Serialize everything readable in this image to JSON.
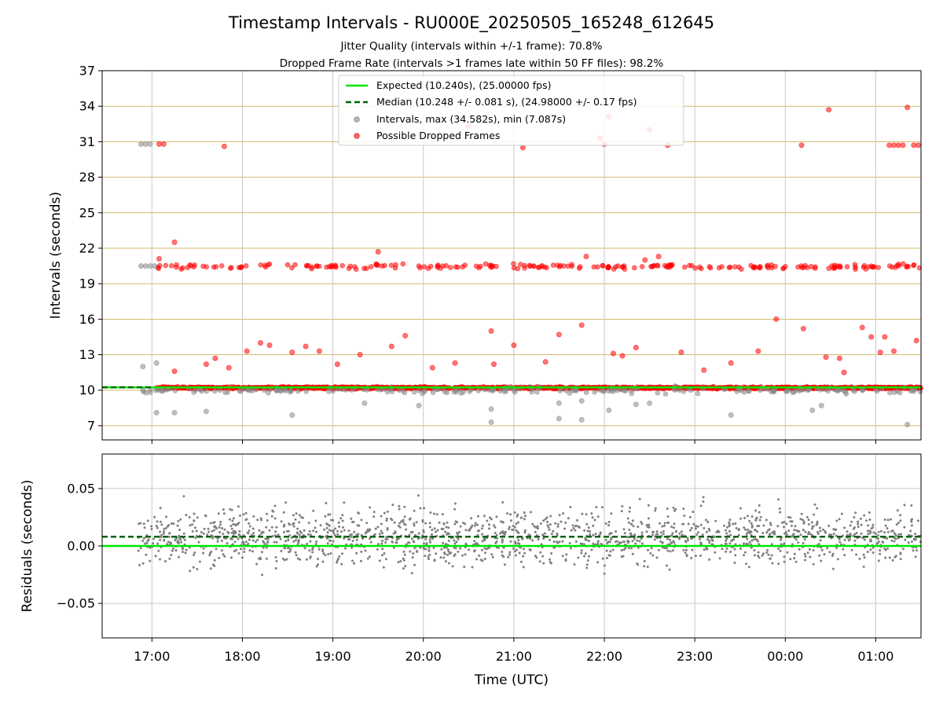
{
  "chart_data": [
    {
      "type": "scatter",
      "panel": "intervals",
      "title": "Timestamp Intervals - RU000E_20250505_165248_612645",
      "subtitle_lines": [
        "Jitter Quality (intervals within +/-1 frame): 70.8%",
        "Dropped Frame Rate (intervals >1 frames late within 50 FF files): 98.2%"
      ],
      "ylabel": "Intervals (seconds)",
      "ylim": [
        5.8,
        37
      ],
      "yticks": [
        7,
        10,
        13,
        16,
        19,
        22,
        25,
        28,
        31,
        34,
        37
      ],
      "xlim_hours": [
        16.45,
        25.5
      ],
      "grid": true,
      "legend_position": "top-center",
      "legend": [
        {
          "label": "Expected (10.240s), (25.00000 fps)",
          "style": "solid-line",
          "color": "#00e600"
        },
        {
          "label": "Median (10.248 +/- 0.081 s), (24.98000 +/- 0.17 fps)",
          "style": "dashed-line",
          "color": "#006400"
        },
        {
          "label": "Intervals, max (34.582s), min (7.087s)",
          "style": "marker",
          "color": "#888888"
        },
        {
          "label": "Possible Dropped Frames",
          "style": "marker",
          "color": "#ff0000"
        }
      ],
      "expected_value": 10.24,
      "median_value": 10.248,
      "series": [
        {
          "name": "Intervals, max (34.582s), min (7.087s)",
          "color": "#888888",
          "points": [
            [
              16.88,
              30.8
            ],
            [
              16.93,
              30.8
            ],
            [
              16.98,
              30.8
            ],
            [
              16.88,
              20.5
            ],
            [
              16.93,
              20.5
            ],
            [
              16.98,
              20.5
            ],
            [
              17.03,
              20.5
            ],
            [
              16.9,
              12.0
            ],
            [
              17.05,
              12.3
            ],
            [
              17.05,
              8.1
            ],
            [
              17.25,
              8.1
            ],
            [
              17.6,
              8.2
            ],
            [
              18.55,
              7.9
            ],
            [
              19.35,
              8.9
            ],
            [
              19.95,
              8.7
            ],
            [
              20.75,
              8.4
            ],
            [
              20.75,
              7.3
            ],
            [
              21.5,
              8.9
            ],
            [
              21.5,
              7.6
            ],
            [
              21.75,
              9.1
            ],
            [
              21.75,
              7.5
            ],
            [
              22.05,
              8.3
            ],
            [
              22.35,
              8.8
            ],
            [
              22.5,
              8.9
            ],
            [
              23.4,
              7.9
            ],
            [
              24.3,
              8.3
            ],
            [
              24.4,
              8.7
            ],
            [
              25.35,
              7.1
            ]
          ]
        },
        {
          "name": "Possible Dropped Frames",
          "color": "#ff0000",
          "points": [
            [
              17.08,
              30.8
            ],
            [
              17.13,
              30.8
            ],
            [
              17.8,
              30.6
            ],
            [
              20.5,
              32.3
            ],
            [
              21.1,
              30.5
            ],
            [
              21.95,
              31.3
            ],
            [
              22.0,
              30.8
            ],
            [
              22.05,
              33.1
            ],
            [
              22.5,
              32.0
            ],
            [
              22.7,
              30.7
            ],
            [
              24.18,
              30.7
            ],
            [
              24.48,
              33.7
            ],
            [
              25.35,
              33.9
            ],
            [
              25.15,
              30.7
            ],
            [
              25.2,
              30.7
            ],
            [
              25.25,
              30.7
            ],
            [
              25.3,
              30.7
            ],
            [
              25.42,
              30.7
            ],
            [
              25.47,
              30.7
            ],
            [
              17.08,
              21.1
            ],
            [
              17.25,
              22.5
            ],
            [
              19.5,
              21.7
            ],
            [
              21.8,
              21.3
            ],
            [
              22.6,
              21.3
            ],
            [
              22.45,
              21.0
            ],
            [
              17.25,
              11.6
            ],
            [
              17.6,
              12.2
            ],
            [
              17.7,
              12.7
            ],
            [
              17.85,
              11.9
            ],
            [
              18.05,
              13.3
            ],
            [
              18.2,
              14.0
            ],
            [
              18.3,
              13.8
            ],
            [
              18.55,
              13.2
            ],
            [
              18.7,
              13.7
            ],
            [
              18.85,
              13.3
            ],
            [
              19.05,
              12.2
            ],
            [
              19.3,
              13.0
            ],
            [
              19.65,
              13.7
            ],
            [
              19.8,
              14.6
            ],
            [
              20.1,
              11.9
            ],
            [
              20.35,
              12.3
            ],
            [
              20.75,
              15.0
            ],
            [
              20.78,
              12.2
            ],
            [
              21.0,
              13.8
            ],
            [
              21.35,
              12.4
            ],
            [
              21.5,
              14.7
            ],
            [
              21.75,
              15.5
            ],
            [
              22.1,
              13.1
            ],
            [
              22.2,
              12.9
            ],
            [
              22.35,
              13.6
            ],
            [
              22.85,
              13.2
            ],
            [
              23.1,
              11.7
            ],
            [
              23.4,
              12.3
            ],
            [
              23.7,
              13.3
            ],
            [
              23.9,
              16.0
            ],
            [
              24.2,
              15.2
            ],
            [
              24.45,
              12.8
            ],
            [
              24.6,
              12.7
            ],
            [
              24.65,
              11.5
            ],
            [
              24.85,
              15.3
            ],
            [
              24.95,
              14.5
            ],
            [
              25.1,
              14.5
            ],
            [
              25.05,
              13.2
            ],
            [
              25.2,
              13.3
            ],
            [
              25.45,
              14.2
            ]
          ]
        }
      ],
      "band_clusters": [
        {
          "center": 20.45,
          "spread": 0.2,
          "from": 17.05,
          "to": 25.5,
          "count": 230,
          "color": "#ff0000"
        },
        {
          "center": 10.2,
          "spread": 0.08,
          "from": 17.05,
          "to": 25.5,
          "count": 1400,
          "color": "#ff0000"
        },
        {
          "center": 10.0,
          "spread": 0.25,
          "from": 16.9,
          "to": 25.5,
          "count": 220,
          "color": "#888888"
        }
      ]
    },
    {
      "type": "scatter",
      "panel": "residuals",
      "xlabel": "Time (UTC)",
      "ylabel": "Residuals (seconds)",
      "ylim": [
        -0.08,
        0.08
      ],
      "yticks": [
        0.05,
        0.0,
        -0.05
      ],
      "ytick_labels": [
        "0.05",
        "0.00",
        "−0.05"
      ],
      "xticks_hours": [
        17,
        18,
        19,
        20,
        21,
        22,
        23,
        24,
        25
      ],
      "xtick_labels": [
        "17:00",
        "18:00",
        "19:00",
        "20:00",
        "21:00",
        "22:00",
        "23:00",
        "00:00",
        "01:00"
      ],
      "xlim_hours": [
        16.45,
        25.5
      ],
      "grid": true,
      "expected_residual": 0.0,
      "median_residual": 0.008,
      "residual_cloud": {
        "from": 16.85,
        "to": 25.5,
        "count": 1700,
        "spread": 0.024,
        "color": "#808080"
      }
    }
  ]
}
